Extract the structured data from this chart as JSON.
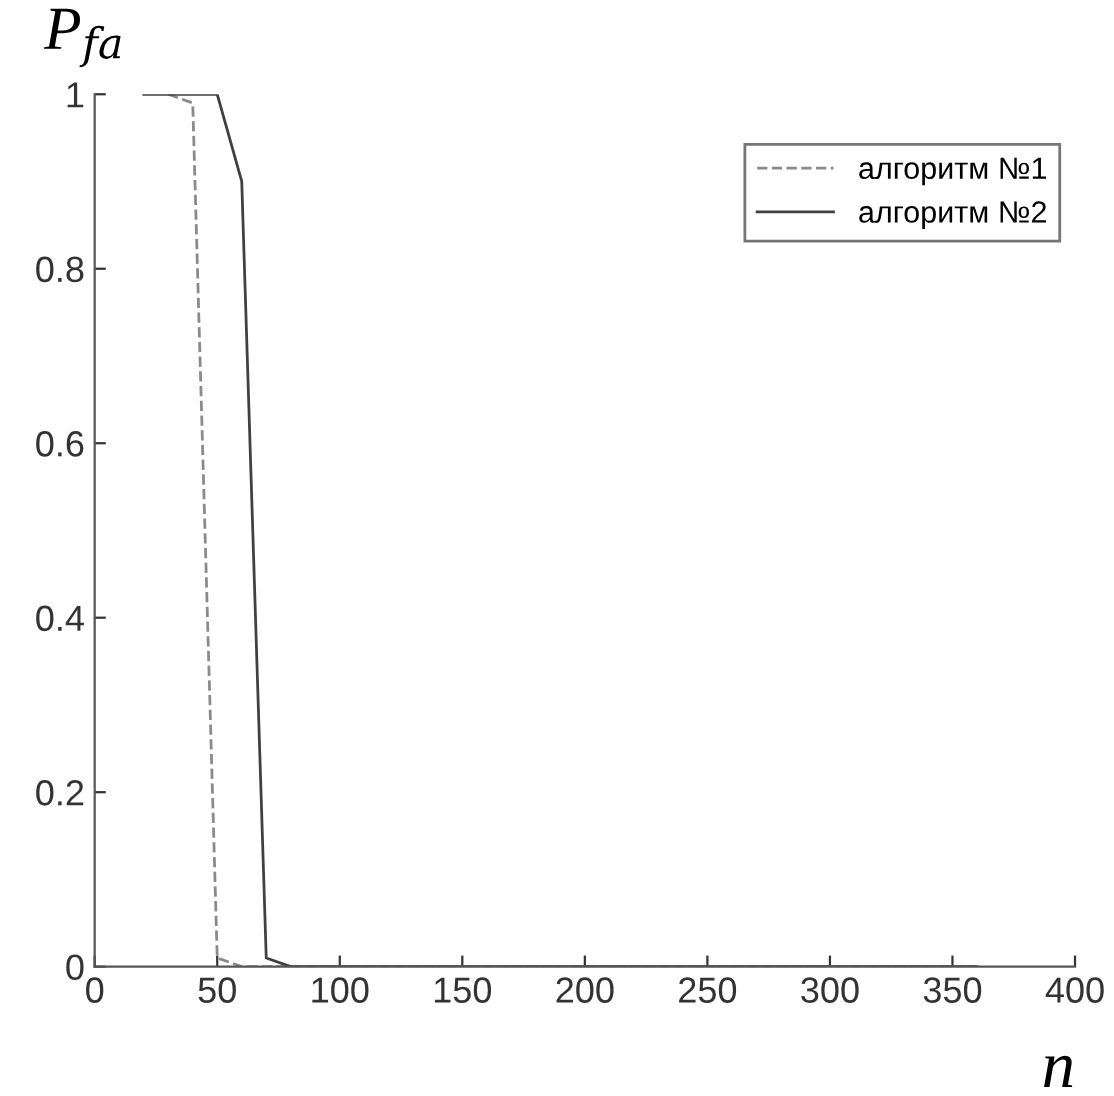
{
  "chart_data": {
    "type": "line",
    "xlabel": "n",
    "ylabel": "P$_{fa}$",
    "series": [
      {
        "name": "алгоритм №1",
        "color": "#8a8a8a",
        "line_style": "dashed",
        "x": [
          30,
          40,
          50,
          60,
          360
        ],
        "values": [
          1,
          0.99,
          0.01,
          0,
          0
        ]
      },
      {
        "name": "алгоритм №2",
        "color": "#404040",
        "line_style": "solid",
        "x": [
          20,
          30,
          40,
          50,
          60,
          70,
          80,
          360
        ],
        "values": [
          1,
          1,
          1,
          1,
          0.9,
          0.01,
          0,
          0
        ]
      }
    ],
    "xlim": [
      0,
      400
    ],
    "ylim": [
      0,
      1
    ],
    "xticks": [
      0,
      50,
      100,
      150,
      200,
      250,
      300,
      350,
      400
    ],
    "yticks": [
      0,
      0.2,
      0.4,
      0.6,
      0.8,
      1
    ],
    "grid": false,
    "legend": "top right",
    "marker": "none"
  }
}
